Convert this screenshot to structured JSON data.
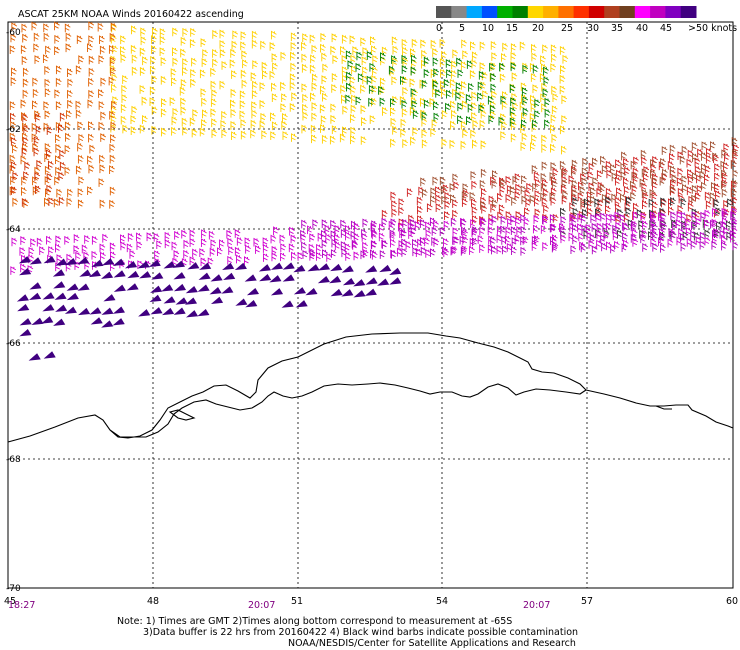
{
  "title": "ASCAT 25KM NOAA Winds 20160422 ascending",
  "legend": {
    "labels": [
      "0",
      "5",
      "10",
      "15",
      "20",
      "25",
      "30",
      "35",
      "40",
      "45",
      ">50 knots"
    ],
    "colors": [
      "#555555",
      "#888888",
      "#00a8ff",
      "#0050ff",
      "#00b000",
      "#008000",
      "#ffd700",
      "#ffb000",
      "#ff7000",
      "#ff3000",
      "#d00000",
      "#b04020",
      "#704020",
      "#ff00ff",
      "#c000c0",
      "#8000c0",
      "#400080"
    ]
  },
  "axes": {
    "lat_labels": [
      "-60",
      "-62",
      "-64",
      "-66",
      "-68",
      "-70"
    ],
    "lon_labels": [
      "45",
      "48",
      "51",
      "54",
      "57",
      "60"
    ],
    "time_labels": [
      "18:27",
      "20:07",
      "20:07"
    ]
  },
  "notes": {
    "line1": "Note: 1) Times are GMT 2)Times along bottom correspond to measurement at -65S",
    "line2": "3)Data buffer is 22 hrs from 20160422 4) Black wind barbs indicate possible contamination",
    "line3": "NOAA/NESDIS/Center for Satellite Applications and Research"
  },
  "wind_field": {
    "regions": [
      {
        "area": "far north-west (lon 45-47, lat -60 to -64)",
        "knots": "30-35",
        "color": "#ff7000"
      },
      {
        "area": "north band (lon 47-57, lat -60 to -63)",
        "knots": "20-25",
        "color": "#ffd700"
      },
      {
        "area": "north-east patch (lon 52-56, lat -60.5 to -62.5)",
        "knots": "15-20",
        "color": "#008000"
      },
      {
        "area": "middle band (lon 52-60, lat -62.7 to -64)",
        "knots": "30-40",
        "color": "#d00000"
      },
      {
        "area": "south-middle band (lon 45-60, lat -64 to -64.8)",
        "knots": "40-45",
        "color": "#ff00ff"
      },
      {
        "area": "south-west (lon 45-52, lat -64.5 to -66.5)",
        "knots": ">50",
        "color": "#400080"
      }
    ]
  }
}
